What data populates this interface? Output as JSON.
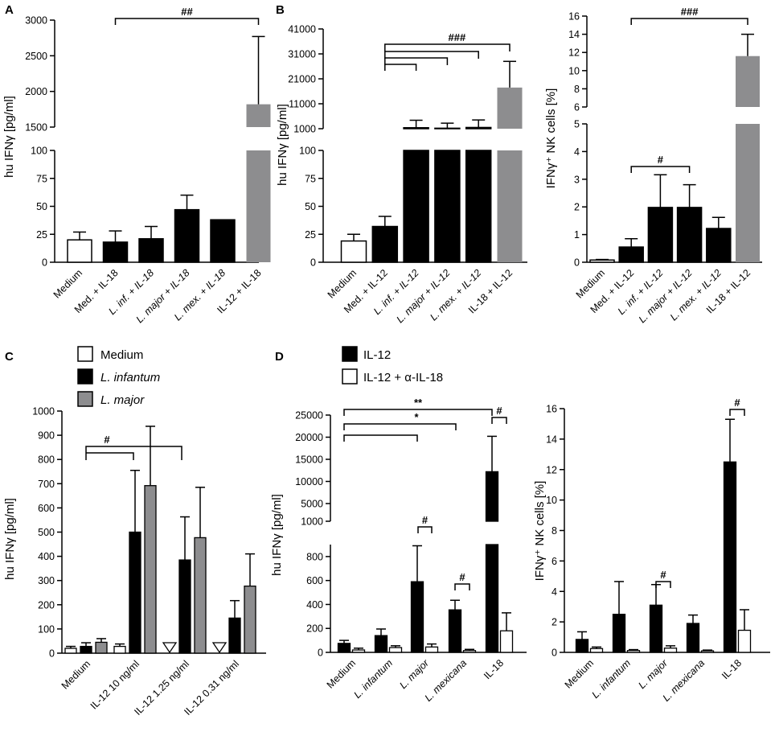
{
  "panels": {
    "A": "A",
    "B": "B",
    "C": "C",
    "D": "D"
  },
  "colors": {
    "white": "#ffffff",
    "black": "#000000",
    "gray": "#9b9b9e",
    "gray_bar": "#8d8d8f"
  },
  "chart_data": [
    {
      "panel": "A",
      "type": "bar",
      "ylabel": "hu IFNγ [pg/ml]",
      "categories": [
        "Medium",
        "Med. + IL-18",
        "L. inf. + IL-18",
        "L. major + IL-18",
        "L. mex. + IL-18",
        "IL-12 + IL-18"
      ],
      "italic": [
        false,
        false,
        true,
        true,
        true,
        false
      ],
      "values": [
        20,
        18,
        21,
        47,
        38,
        1820
      ],
      "errors": [
        7,
        10,
        11,
        13,
        0,
        950
      ],
      "colors": [
        "white",
        "black",
        "black",
        "black",
        "black",
        "gray"
      ],
      "axis_lower": {
        "ticks": [
          0,
          25,
          50,
          75,
          100
        ],
        "ylim": [
          0,
          100
        ]
      },
      "axis_upper": {
        "ticks": [
          1500,
          2000,
          2500,
          3000
        ],
        "ylim": [
          1500,
          3000
        ]
      },
      "brackets": [
        {
          "from": 1,
          "to": 5,
          "label": "##"
        }
      ]
    },
    {
      "panel": "B1",
      "type": "bar",
      "ylabel": "hu IFNγ [pg/ml]",
      "categories": [
        "Medium",
        "Med. + IL-12",
        "L. inf. + IL-12",
        "L. major + IL-12",
        "L. mex. + IL-12",
        "IL-18 + IL-12"
      ],
      "italic": [
        false,
        false,
        true,
        true,
        true,
        false
      ],
      "values": [
        19,
        32,
        1400,
        1200,
        1500,
        17500
      ],
      "errors": [
        6,
        9,
        3000,
        2000,
        3000,
        10500
      ],
      "colors": [
        "white",
        "black",
        "black",
        "black",
        "black",
        "gray"
      ],
      "axis_lower": {
        "ticks": [
          0,
          25,
          50,
          75,
          100
        ],
        "ylim": [
          0,
          100
        ]
      },
      "axis_upper": {
        "ticks": [
          1000,
          11000,
          21000,
          31000,
          41000
        ],
        "ylim": [
          1000,
          41000
        ]
      },
      "brackets": [
        {
          "from": 1,
          "to": 5,
          "label": "###"
        },
        {
          "from": 1,
          "to": 2,
          "label": ""
        },
        {
          "from": 1,
          "to": 3,
          "label": ""
        },
        {
          "from": 1,
          "to": 4,
          "label": ""
        }
      ]
    },
    {
      "panel": "B2",
      "type": "bar",
      "ylabel": "IFNγ⁺ NK cells [%]",
      "categories": [
        "Medium",
        "Med. + IL-12",
        "L. inf. + IL-12",
        "L. major + IL-12",
        "L. mex. + IL-12",
        "IL-18 + IL-12"
      ],
      "italic": [
        false,
        false,
        true,
        true,
        true,
        false
      ],
      "values": [
        0.08,
        0.55,
        1.98,
        1.98,
        1.22,
        11.6
      ],
      "errors": [
        0.02,
        0.3,
        1.18,
        0.82,
        0.4,
        2.4
      ],
      "colors": [
        "white",
        "black",
        "black",
        "black",
        "black",
        "gray"
      ],
      "axis_lower": {
        "ticks": [
          0,
          1,
          2,
          3,
          4,
          5
        ],
        "ylim": [
          0,
          5
        ]
      },
      "axis_upper": {
        "ticks": [
          6,
          8,
          10,
          12,
          14,
          16
        ],
        "ylim": [
          6,
          16
        ]
      },
      "brackets": [
        {
          "from": 1,
          "to": 5,
          "label": "###"
        },
        {
          "from": 1,
          "to": 3,
          "label": "#"
        }
      ]
    },
    {
      "panel": "C",
      "type": "grouped-bar",
      "ylabel": "hu IFNγ [pg/ml]",
      "categories": [
        "Medium",
        "IL-12 10 ng/ml",
        "IL-12 1.25 ng/ml",
        "IL-12 0.31 ng/ml"
      ],
      "legend": [
        "Medium",
        "L. infantum",
        "L. major"
      ],
      "legend_italic": [
        false,
        true,
        true
      ],
      "series": [
        {
          "name": "Medium",
          "color": "white",
          "values": [
            20,
            28,
            null,
            null
          ],
          "errors": [
            8,
            10,
            0,
            0
          ],
          "not_detected": [
            false,
            false,
            true,
            true
          ]
        },
        {
          "name": "L. infantum",
          "color": "black",
          "values": [
            28,
            500,
            385,
            145
          ],
          "errors": [
            15,
            255,
            178,
            72
          ]
        },
        {
          "name": "L. major",
          "color": "gray",
          "values": [
            45,
            692,
            477,
            277
          ],
          "errors": [
            15,
            245,
            208,
            133
          ]
        }
      ],
      "ylim": [
        0,
        1000
      ],
      "ticks": [
        0,
        100,
        200,
        300,
        400,
        500,
        600,
        700,
        800,
        900,
        1000
      ],
      "brackets": [
        {
          "label": "#"
        }
      ]
    },
    {
      "panel": "D1",
      "type": "grouped-bar",
      "ylabel": "hu IFNγ [pg/ml]",
      "categories": [
        "Medium",
        "L. infantum",
        "L. major",
        "L. mexicana",
        "IL-18"
      ],
      "italic": [
        false,
        true,
        true,
        true,
        false
      ],
      "legend": [
        "IL-12",
        "IL-12 + α-IL-18"
      ],
      "series": [
        {
          "name": "IL-12",
          "color": "black",
          "values": [
            75,
            140,
            590,
            355,
            12200
          ],
          "errors": [
            25,
            55,
            300,
            80,
            8000
          ]
        },
        {
          "name": "IL-12 + α-IL-18",
          "color": "white",
          "values": [
            20,
            40,
            45,
            15,
            180
          ],
          "errors": [
            15,
            15,
            25,
            10,
            150
          ]
        }
      ],
      "axis_lower": {
        "ticks": [
          0,
          200,
          400,
          600,
          800
        ],
        "ylim": [
          0,
          900
        ]
      },
      "axis_upper": {
        "ticks": [
          1000,
          5000,
          10000,
          15000,
          20000,
          25000
        ],
        "ylim": [
          1000,
          25000
        ]
      },
      "brackets": [
        {
          "label": "**"
        },
        {
          "label": "*"
        },
        {
          "label": "#"
        }
      ]
    },
    {
      "panel": "D2",
      "type": "grouped-bar",
      "ylabel": "IFNγ⁺ NK cells [%]",
      "categories": [
        "Medium",
        "L. infantum",
        "L. major",
        "L. mexicana",
        "IL-18"
      ],
      "italic": [
        false,
        true,
        true,
        true,
        false
      ],
      "series": [
        {
          "name": "IL-12",
          "color": "black",
          "values": [
            0.85,
            2.5,
            3.1,
            1.9,
            12.5
          ],
          "errors": [
            0.5,
            2.15,
            1.35,
            0.55,
            2.8
          ]
        },
        {
          "name": "IL-12 + α-IL-18",
          "color": "white",
          "values": [
            0.25,
            0.12,
            0.28,
            0.1,
            1.45
          ],
          "errors": [
            0.1,
            0.06,
            0.15,
            0.05,
            1.35
          ]
        }
      ],
      "ylim": [
        0,
        16
      ],
      "ticks": [
        0,
        2,
        4,
        6,
        8,
        10,
        12,
        14,
        16
      ],
      "brackets": [
        {
          "label": "#"
        }
      ]
    }
  ]
}
